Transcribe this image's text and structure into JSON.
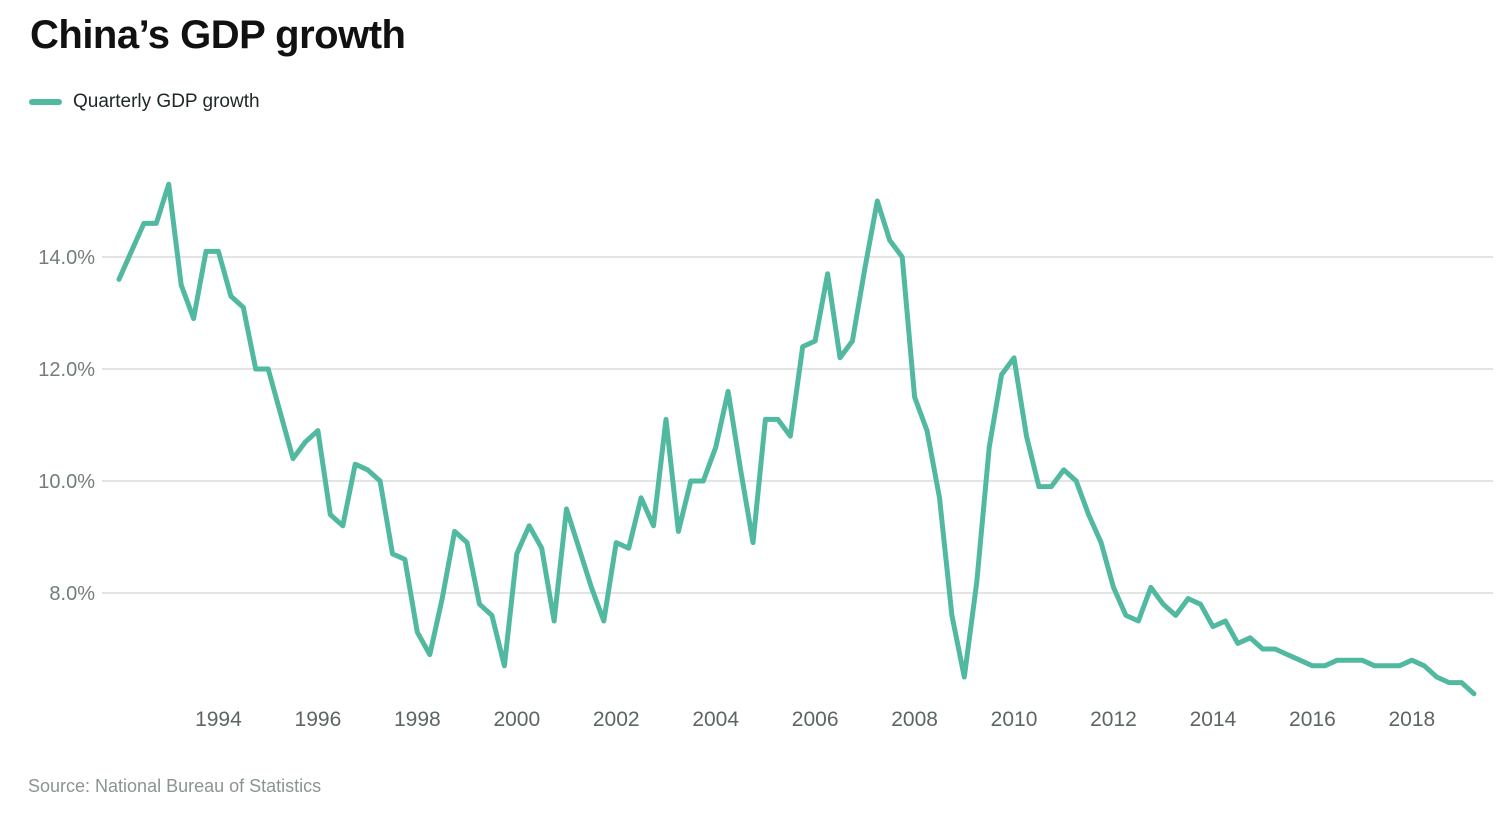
{
  "title": "China’s GDP growth",
  "legend": {
    "label": "Quarterly GDP growth"
  },
  "source": "Source: National Bureau of Statistics",
  "colors": {
    "line": "#52b9a1",
    "grid": "#e2e5e4",
    "y_axis_text": "#747d7e",
    "x_axis_text": "#5d6567",
    "title_text": "#111111",
    "source_text": "#8b9493",
    "background": "#ffffff"
  },
  "chart_data": {
    "type": "line",
    "title": "China’s GDP growth",
    "series_name": "Quarterly GDP growth",
    "unit": "percent, year-over-year",
    "frequency": "quarterly",
    "start_year": 1992,
    "start_quarter": 1,
    "end_year": 2019,
    "end_quarter": 2,
    "grid": "horizontal-only",
    "legend_position": "top-left",
    "ylim": [
      5.9,
      15.6
    ],
    "y_ticks": [
      {
        "label": "14.0%",
        "value": 14
      },
      {
        "label": "12.0%",
        "value": 12
      },
      {
        "label": "10.0%",
        "value": 10
      },
      {
        "label": "8.0%",
        "value": 8
      }
    ],
    "x_tick_years": [
      1994,
      1996,
      1998,
      2000,
      2002,
      2004,
      2006,
      2008,
      2010,
      2012,
      2014,
      2016,
      2018
    ],
    "values": [
      13.6,
      14.1,
      14.6,
      14.6,
      15.3,
      13.5,
      12.9,
      14.1,
      14.1,
      13.3,
      13.1,
      12.0,
      12.0,
      11.2,
      10.4,
      10.7,
      10.9,
      9.4,
      9.2,
      10.3,
      10.2,
      10.0,
      8.7,
      8.6,
      7.3,
      6.9,
      7.9,
      9.1,
      8.9,
      7.8,
      7.6,
      6.7,
      8.7,
      9.2,
      8.8,
      7.5,
      9.5,
      8.8,
      8.1,
      7.5,
      8.9,
      8.8,
      9.7,
      9.2,
      11.1,
      9.1,
      10.0,
      10.0,
      10.6,
      11.6,
      10.2,
      8.9,
      11.1,
      11.1,
      10.8,
      12.4,
      12.5,
      13.7,
      12.2,
      12.5,
      13.8,
      15.0,
      14.3,
      14.0,
      11.5,
      10.9,
      9.7,
      7.6,
      6.5,
      8.2,
      10.6,
      11.9,
      12.2,
      10.8,
      9.9,
      9.9,
      10.2,
      10.0,
      9.4,
      8.9,
      8.1,
      7.6,
      7.5,
      8.1,
      7.8,
      7.6,
      7.9,
      7.8,
      7.4,
      7.5,
      7.1,
      7.2,
      7.0,
      7.0,
      6.9,
      6.8,
      6.7,
      6.7,
      6.8,
      6.8,
      6.8,
      6.7,
      6.7,
      6.7,
      6.8,
      6.7,
      6.5,
      6.4,
      6.4,
      6.2
    ]
  }
}
